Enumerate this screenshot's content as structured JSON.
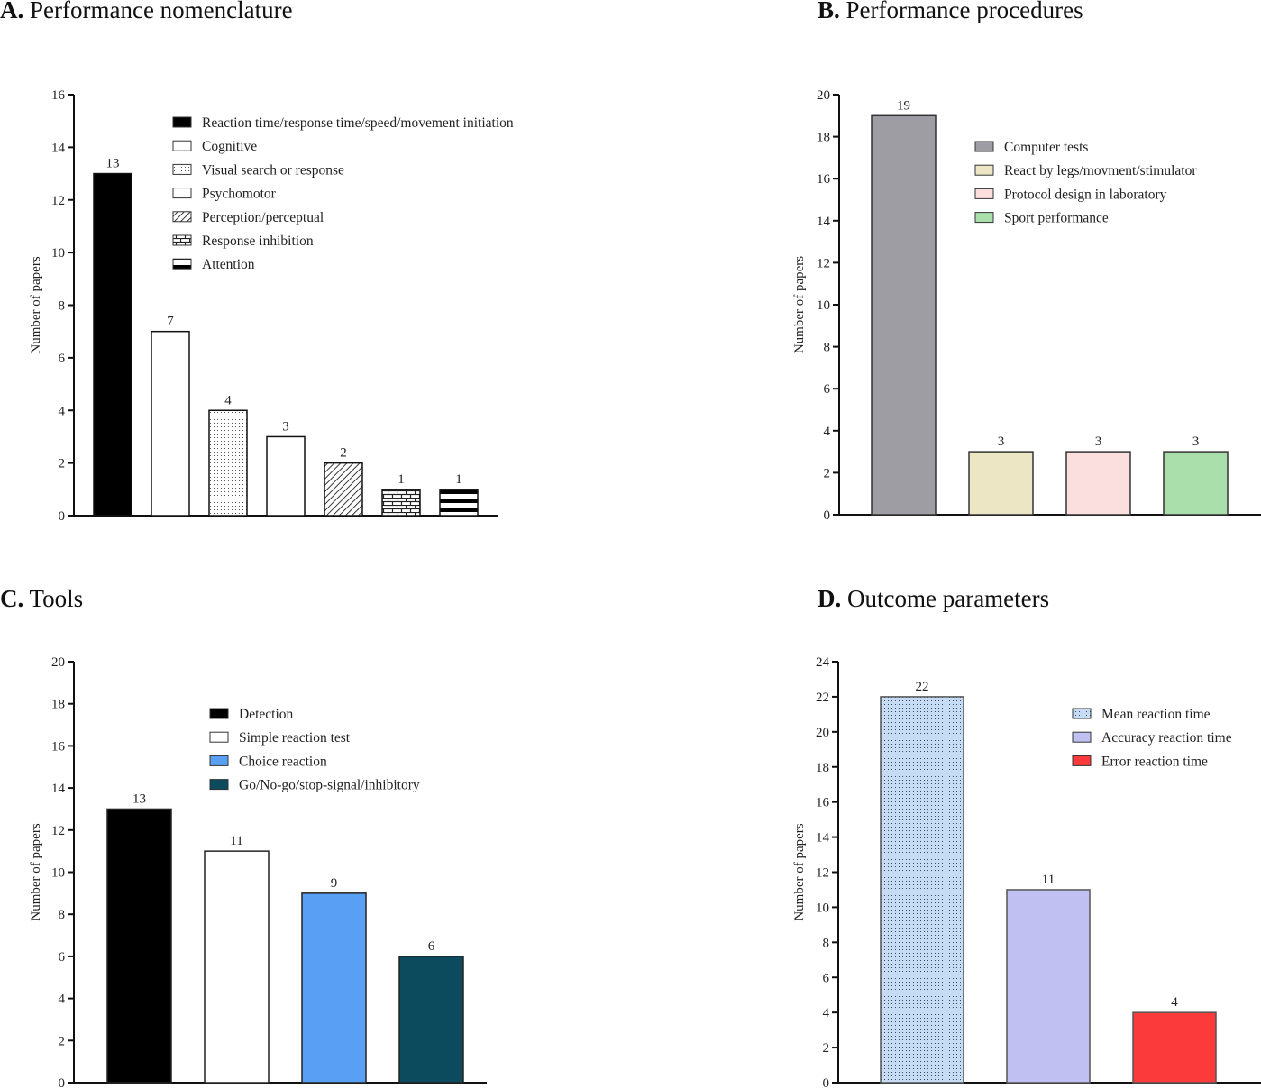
{
  "figure": {
    "panels": [
      {
        "letter": "A.",
        "title": "Performance nomenclature"
      },
      {
        "letter": "B.",
        "title": "Performance procedures"
      },
      {
        "letter": "C.",
        "title": "Tools"
      },
      {
        "letter": "D.",
        "title": "Outcome parameters"
      }
    ]
  },
  "chart_data": [
    {
      "type": "bar",
      "title": "Performance nomenclature",
      "xlabel": "",
      "ylabel": "Number of papers",
      "ylim": [
        0,
        16
      ],
      "yticks": [
        0,
        2,
        4,
        6,
        8,
        10,
        12,
        14,
        16
      ],
      "grid": false,
      "legend_position": "top-right",
      "categories": [
        "Reaction time/response time/speed/movement initiation",
        "Cognitive",
        "Visual search or response",
        "Psychomotor",
        "Perception/perceptual",
        "Response inhibition",
        "Attention"
      ],
      "values": [
        13,
        7,
        4,
        3,
        2,
        1,
        1
      ],
      "data_labels": [
        "13",
        "7",
        "4",
        "3",
        "2",
        "1",
        "1"
      ],
      "fills": [
        {
          "pattern": "solid",
          "color": "#000000"
        },
        {
          "pattern": "solid",
          "color": "#ffffff"
        },
        {
          "pattern": "dots",
          "color": "#ffffff"
        },
        {
          "pattern": "solid",
          "color": "#ffffff"
        },
        {
          "pattern": "diagonal",
          "color": "#ffffff"
        },
        {
          "pattern": "bricks",
          "color": "#ffffff"
        },
        {
          "pattern": "hstripes",
          "color": "#ffffff"
        }
      ]
    },
    {
      "type": "bar",
      "title": "Performance procedures",
      "xlabel": "",
      "ylabel": "Number of papers",
      "ylim": [
        0,
        20
      ],
      "yticks": [
        0,
        2,
        4,
        6,
        8,
        10,
        12,
        14,
        16,
        18,
        20
      ],
      "grid": false,
      "legend_position": "top-right",
      "categories": [
        "Computer tests",
        "React by legs/movment/stimulator",
        "Protocol design in laboratory",
        "Sport performance"
      ],
      "values": [
        19,
        3,
        3,
        3
      ],
      "data_labels": [
        "19",
        "3",
        "3",
        "3"
      ],
      "fills": [
        {
          "pattern": "solid",
          "color": "#9d9da3"
        },
        {
          "pattern": "solid",
          "color": "#ede6c4"
        },
        {
          "pattern": "solid",
          "color": "#fbdede"
        },
        {
          "pattern": "solid",
          "color": "#aadeab"
        }
      ]
    },
    {
      "type": "bar",
      "title": "Tools",
      "xlabel": "",
      "ylabel": "Number of papers",
      "ylim": [
        0,
        20
      ],
      "yticks": [
        0,
        2,
        4,
        6,
        8,
        10,
        12,
        14,
        16,
        18,
        20
      ],
      "grid": false,
      "legend_position": "top-right",
      "categories": [
        "Detection",
        "Simple reaction test",
        "Choice reaction",
        "Go/No-go/stop-signal/inhibitory"
      ],
      "values": [
        13,
        11,
        9,
        6
      ],
      "data_labels": [
        "13",
        "11",
        "9",
        "6"
      ],
      "fills": [
        {
          "pattern": "solid",
          "color": "#000000"
        },
        {
          "pattern": "solid",
          "color": "#ffffff"
        },
        {
          "pattern": "solid",
          "color": "#59a0f5"
        },
        {
          "pattern": "solid",
          "color": "#0c4a5e"
        }
      ]
    },
    {
      "type": "bar",
      "title": "Outcome parameters",
      "xlabel": "",
      "ylabel": "Number of papers",
      "ylim": [
        0,
        24
      ],
      "yticks": [
        0,
        2,
        4,
        6,
        8,
        10,
        12,
        14,
        16,
        18,
        20,
        22,
        24
      ],
      "grid": false,
      "legend_position": "top-right",
      "categories": [
        "Mean reaction time",
        "Accuracy reaction time",
        "Error reaction time"
      ],
      "values": [
        22,
        11,
        4
      ],
      "data_labels": [
        "22",
        "11",
        "4"
      ],
      "fills": [
        {
          "pattern": "dots",
          "color": "#c6dcf4"
        },
        {
          "pattern": "solid",
          "color": "#c0c0f2"
        },
        {
          "pattern": "solid",
          "color": "#fb3b3b"
        }
      ]
    }
  ]
}
